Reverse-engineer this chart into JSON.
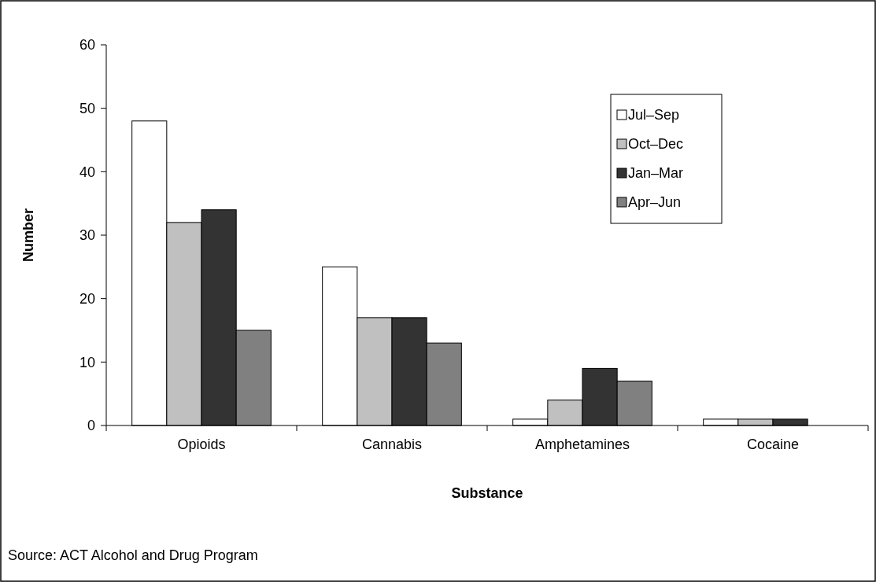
{
  "chart_data": {
    "type": "bar",
    "xlabel": "Substance",
    "ylabel": "Number",
    "categories": [
      "Opioids",
      "Cannabis",
      "Amphetamines",
      "Cocaine"
    ],
    "series": [
      {
        "name": "Jul–Sep",
        "color": "#ffffff",
        "values": [
          48,
          25,
          1,
          1
        ]
      },
      {
        "name": "Oct–Dec",
        "color": "#c0c0c0",
        "values": [
          32,
          17,
          4,
          1
        ]
      },
      {
        "name": "Jan–Mar",
        "color": "#333333",
        "values": [
          34,
          17,
          9,
          1
        ]
      },
      {
        "name": "Apr–Jun",
        "color": "#808080",
        "values": [
          15,
          13,
          7,
          0
        ]
      }
    ],
    "ylim": [
      0,
      60
    ],
    "yticks": [
      0,
      10,
      20,
      30,
      40,
      50,
      60
    ],
    "grid": false,
    "legend": "top right",
    "annotations": [
      "Source: ACT Alcohol and Drug Program"
    ]
  }
}
